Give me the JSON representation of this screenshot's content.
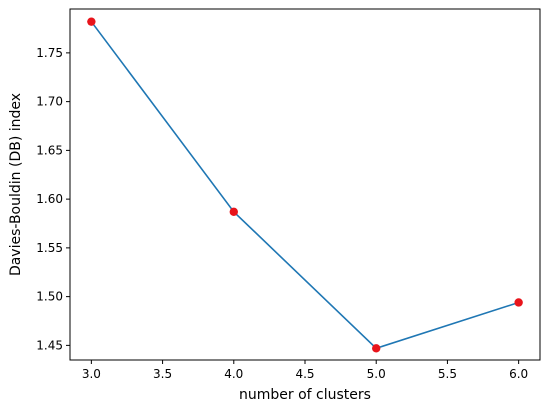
{
  "chart_data": {
    "type": "line",
    "title": "",
    "xlabel": "number of clusters",
    "ylabel": "Davies-Bouldin (DB) index",
    "x": [
      3.0,
      4.0,
      5.0,
      6.0
    ],
    "y": [
      1.782,
      1.587,
      1.447,
      1.494
    ],
    "xlim": [
      2.85,
      6.15
    ],
    "ylim": [
      1.435,
      1.795
    ],
    "xticks": [
      3.0,
      3.5,
      4.0,
      4.5,
      5.0,
      5.5,
      6.0
    ],
    "xtick_labels": [
      "3.0",
      "3.5",
      "4.0",
      "4.5",
      "5.0",
      "5.5",
      "6.0"
    ],
    "yticks": [
      1.45,
      1.5,
      1.55,
      1.6,
      1.65,
      1.7,
      1.75
    ],
    "ytick_labels": [
      "1.45",
      "1.50",
      "1.55",
      "1.60",
      "1.65",
      "1.70",
      "1.75"
    ],
    "grid": false,
    "line_color": "#1f77b4",
    "marker_color": "#e8141b"
  }
}
